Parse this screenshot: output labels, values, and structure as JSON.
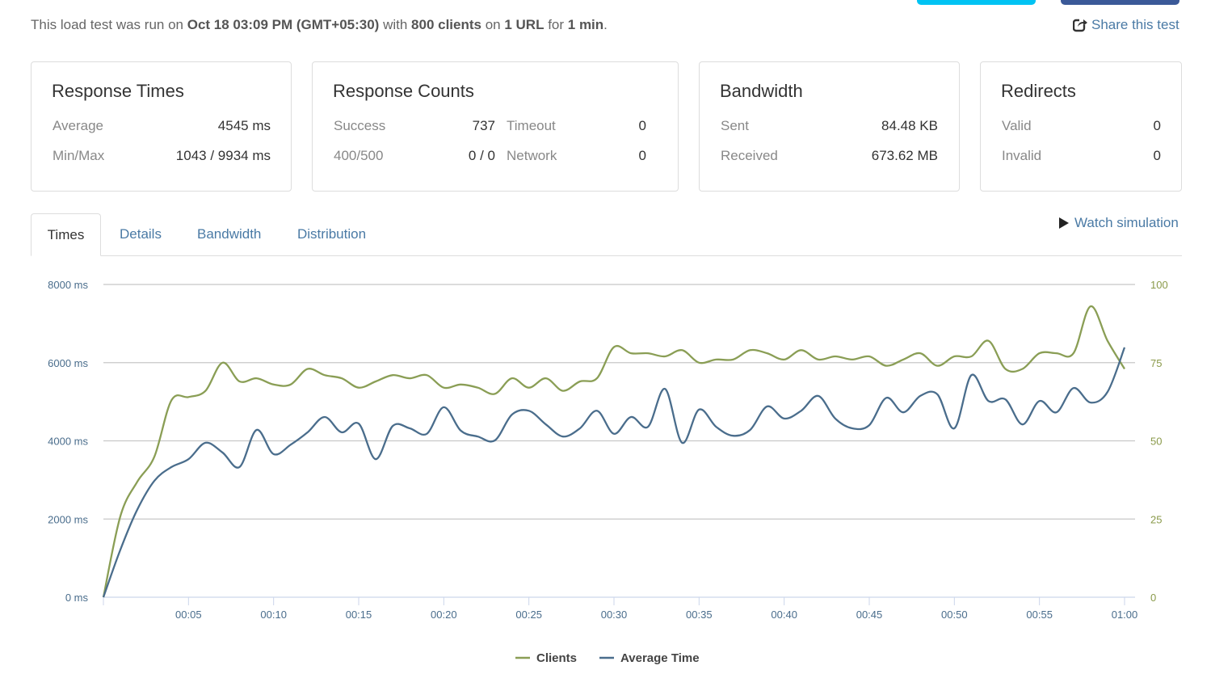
{
  "header": {
    "summary": {
      "prefix": "This load test was run on ",
      "date": "Oct 18 03:09 PM (GMT+05:30)",
      "mid1": " with ",
      "clients": "800 clients",
      "mid2": " on ",
      "urls": "1 URL",
      "mid3": " for ",
      "duration": "1 min",
      "suffix": "."
    },
    "share_label": "Share this test",
    "button_colors": [
      "#00c3f3",
      "#3b5998"
    ]
  },
  "cards": {
    "response_times": {
      "title": "Response Times",
      "average_label": "Average",
      "average": "4545 ms",
      "minmax_label": "Min/Max",
      "minmax": "1043 / 9934 ms"
    },
    "response_counts": {
      "title": "Response Counts",
      "success_label": "Success",
      "success": "737",
      "timeout_label": "Timeout",
      "timeout": "0",
      "errors_label": "400/500",
      "errors": "0 / 0",
      "network_label": "Network",
      "network": "0"
    },
    "bandwidth": {
      "title": "Bandwidth",
      "sent_label": "Sent",
      "sent": "84.48 KB",
      "received_label": "Received",
      "received": "673.62 MB"
    },
    "redirects": {
      "title": "Redirects",
      "valid_label": "Valid",
      "valid": "0",
      "invalid_label": "Invalid",
      "invalid": "0"
    }
  },
  "tabs": [
    {
      "label": "Times",
      "active": true
    },
    {
      "label": "Details",
      "active": false
    },
    {
      "label": "Bandwidth",
      "active": false
    },
    {
      "label": "Distribution",
      "active": false
    }
  ],
  "watch_label": "Watch simulation",
  "chart_data": {
    "type": "line",
    "y_left": {
      "ticks": [
        "0 ms",
        "2000 ms",
        "4000 ms",
        "6000 ms",
        "8000 ms"
      ],
      "range": [
        0,
        8000
      ]
    },
    "y_right": {
      "ticks": [
        "0",
        "25",
        "50",
        "75",
        "100"
      ],
      "range": [
        0,
        100
      ]
    },
    "x_ticks": [
      "00:05",
      "00:10",
      "00:15",
      "00:20",
      "00:25",
      "00:30",
      "00:35",
      "00:40",
      "00:45",
      "00:50",
      "00:55",
      "01:00"
    ],
    "x_range_seconds": [
      0,
      60
    ],
    "grid": true,
    "legend_position": "bottom",
    "series": [
      {
        "name": "Clients",
        "axis": "right",
        "color": "#8a9e55",
        "values": [
          0,
          26,
          37,
          45,
          63,
          64,
          66,
          75,
          69,
          70,
          68,
          68,
          73,
          71,
          70,
          67,
          69,
          71,
          70,
          71,
          67,
          68,
          67,
          65,
          70,
          67,
          70,
          66,
          69,
          70,
          80,
          78,
          78,
          77,
          79,
          75,
          76,
          76,
          79,
          78,
          76,
          79,
          76,
          77,
          76,
          77,
          74,
          76,
          78,
          74,
          77,
          77,
          82,
          73,
          73,
          78,
          78,
          78,
          93,
          82,
          73
        ]
      },
      {
        "name": "Average Time",
        "axis": "left",
        "color": "#4a6d8c",
        "values": [
          0,
          1220,
          2250,
          2980,
          3330,
          3530,
          3950,
          3700,
          3330,
          4280,
          3660,
          3900,
          4220,
          4610,
          4220,
          4440,
          3530,
          4380,
          4320,
          4180,
          4860,
          4260,
          4110,
          4010,
          4670,
          4770,
          4420,
          4110,
          4320,
          4770,
          4180,
          4610,
          4360,
          5330,
          3950,
          4800,
          4360,
          4130,
          4280,
          4880,
          4570,
          4770,
          5150,
          4570,
          4320,
          4400,
          5100,
          4730,
          5150,
          5190,
          4320,
          5680,
          5020,
          5060,
          4420,
          5020,
          4730,
          5350,
          4980,
          5250,
          6390
        ]
      }
    ]
  }
}
